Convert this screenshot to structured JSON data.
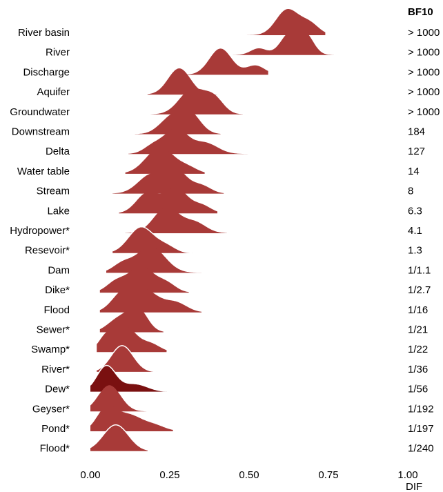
{
  "chart_data": {
    "type": "ridgeline",
    "xlabel": "DIF",
    "xlim": [
      0,
      1
    ],
    "x_ticks": [
      "0.00",
      "0.25",
      "0.50",
      "0.75",
      "1.00"
    ],
    "right_column_header": "BF10",
    "fill_color": "#a83a38",
    "highlight_color": "#7a1010",
    "outline_color": "#ffffff",
    "rows": [
      {
        "label": "River basin",
        "bf": "> 1000",
        "peaks": [
          [
            0.62,
            0.035,
            1.0
          ],
          [
            0.69,
            0.03,
            0.45
          ]
        ],
        "range": [
          0.44,
          0.74
        ],
        "outline": false
      },
      {
        "label": "River",
        "bf": "> 1000",
        "peaks": [
          [
            0.63,
            0.03,
            1.0
          ],
          [
            0.68,
            0.025,
            0.8
          ],
          [
            0.53,
            0.025,
            0.3
          ]
        ],
        "range": [
          0.42,
          0.79
        ],
        "outline": false
      },
      {
        "label": "Discharge",
        "bf": "> 1000",
        "peaks": [
          [
            0.41,
            0.035,
            1.0
          ],
          [
            0.52,
            0.03,
            0.35
          ]
        ],
        "range": [
          0.24,
          0.56
        ],
        "outline": false
      },
      {
        "label": "Aquifer",
        "bf": "> 1000",
        "peaks": [
          [
            0.28,
            0.035,
            1.0
          ]
        ],
        "range": [
          0.18,
          0.4
        ],
        "outline": false
      },
      {
        "label": "Groundwater",
        "bf": "> 1000",
        "peaks": [
          [
            0.32,
            0.04,
            1.0
          ],
          [
            0.39,
            0.03,
            0.6
          ]
        ],
        "range": [
          0.19,
          0.48
        ],
        "outline": false
      },
      {
        "label": "Downstream",
        "bf": "184",
        "peaks": [
          [
            0.25,
            0.035,
            0.65
          ],
          [
            0.31,
            0.035,
            1.0
          ]
        ],
        "range": [
          0.14,
          0.41
        ],
        "outline": false
      },
      {
        "label": "Delta",
        "bf": "127",
        "peaks": [
          [
            0.27,
            0.035,
            1.0
          ],
          [
            0.36,
            0.04,
            0.45
          ],
          [
            0.2,
            0.03,
            0.35
          ]
        ],
        "range": [
          0.12,
          0.51
        ],
        "outline": false
      },
      {
        "label": "Water table",
        "bf": "14",
        "peaks": [
          [
            0.22,
            0.045,
            1.0
          ],
          [
            0.31,
            0.03,
            0.2
          ]
        ],
        "range": [
          0.11,
          0.36
        ],
        "outline": false
      },
      {
        "label": "Stream",
        "bf": "8",
        "peaks": [
          [
            0.19,
            0.04,
            0.6
          ],
          [
            0.27,
            0.035,
            0.75
          ],
          [
            0.35,
            0.03,
            0.25
          ]
        ],
        "range": [
          0.07,
          0.42
        ],
        "outline": false
      },
      {
        "label": "Lake",
        "bf": "6.3",
        "peaks": [
          [
            0.18,
            0.035,
            0.65
          ],
          [
            0.27,
            0.035,
            0.8
          ],
          [
            0.35,
            0.03,
            0.25
          ]
        ],
        "range": [
          0.09,
          0.4
        ],
        "outline": false
      },
      {
        "label": "Hydropower*",
        "bf": "4.1",
        "peaks": [
          [
            0.24,
            0.04,
            1.0
          ],
          [
            0.33,
            0.035,
            0.4
          ]
        ],
        "range": [
          0.11,
          0.43
        ],
        "outline": false
      },
      {
        "label": "Resevoir*",
        "bf": "1.3",
        "peaks": [
          [
            0.16,
            0.04,
            1.0
          ],
          [
            0.24,
            0.03,
            0.25
          ]
        ],
        "range": [
          0.07,
          0.32
        ],
        "outline": true
      },
      {
        "label": "Dam",
        "bf": "1/1.1",
        "peaks": [
          [
            0.19,
            0.045,
            0.95
          ],
          [
            0.1,
            0.03,
            0.3
          ]
        ],
        "range": [
          0.05,
          0.35
        ],
        "outline": false
      },
      {
        "label": "Dike*",
        "bf": "1/2.7",
        "peaks": [
          [
            0.16,
            0.04,
            0.9
          ],
          [
            0.08,
            0.03,
            0.35
          ],
          [
            0.24,
            0.03,
            0.3
          ]
        ],
        "range": [
          0.03,
          0.31
        ],
        "outline": false
      },
      {
        "label": "Flood",
        "bf": "1/16",
        "peaks": [
          [
            0.1,
            0.035,
            0.45
          ],
          [
            0.17,
            0.045,
            0.6
          ],
          [
            0.27,
            0.035,
            0.25
          ]
        ],
        "range": [
          0.03,
          0.35
        ],
        "outline": false
      },
      {
        "label": "Sewer*",
        "bf": "1/21",
        "peaks": [
          [
            0.09,
            0.035,
            0.5
          ],
          [
            0.15,
            0.03,
            0.85
          ]
        ],
        "range": [
          0.03,
          0.23
        ],
        "outline": false
      },
      {
        "label": "Swamp*",
        "bf": "1/22",
        "peaks": [
          [
            0.05,
            0.025,
            0.45
          ],
          [
            0.11,
            0.035,
            0.8
          ],
          [
            0.19,
            0.03,
            0.25
          ]
        ],
        "range": [
          0.02,
          0.24
        ],
        "outline": false
      },
      {
        "label": "River*",
        "bf": "1/36",
        "peaks": [
          [
            0.1,
            0.035,
            1.0
          ]
        ],
        "range": [
          0.02,
          0.21
        ],
        "outline": true
      },
      {
        "label": "Dew*",
        "bf": "1/56",
        "peaks": [
          [
            0.05,
            0.03,
            1.0
          ],
          [
            0.14,
            0.04,
            0.3
          ]
        ],
        "range": [
          0.0,
          0.24
        ],
        "outline": true,
        "highlight": true
      },
      {
        "label": "Geyser*",
        "bf": "1/192",
        "peaks": [
          [
            0.06,
            0.035,
            1.0
          ]
        ],
        "range": [
          0.0,
          0.18
        ],
        "outline": false
      },
      {
        "label": "Pond*",
        "bf": "1/197",
        "peaks": [
          [
            0.05,
            0.03,
            0.7
          ],
          [
            0.12,
            0.04,
            0.5
          ],
          [
            0.2,
            0.035,
            0.18
          ]
        ],
        "range": [
          0.0,
          0.26
        ],
        "outline": false
      },
      {
        "label": "Flood*",
        "bf": "1/240",
        "peaks": [
          [
            0.08,
            0.04,
            1.0
          ]
        ],
        "range": [
          0.0,
          0.18
        ],
        "outline": true
      }
    ]
  }
}
